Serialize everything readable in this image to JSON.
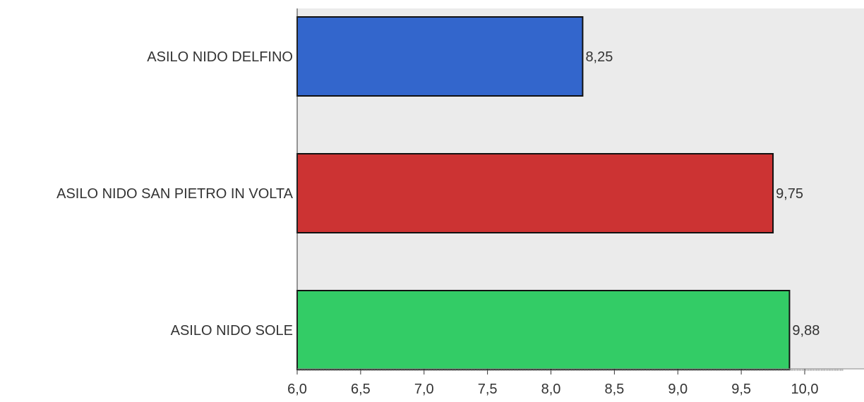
{
  "chart_data": {
    "type": "bar",
    "orientation": "horizontal",
    "categories": [
      "ASILO NIDO DELFINO",
      "ASILO NIDO SAN PIETRO IN VOLTA",
      "ASILO NIDO SOLE"
    ],
    "values": [
      8.25,
      9.75,
      9.88
    ],
    "value_labels": [
      "8,25",
      "9,75",
      "9,88"
    ],
    "colors": [
      "#3366cc",
      "#cc3333",
      "#33cc66"
    ],
    "xlim": [
      6.0,
      10.3
    ],
    "xticks": [
      6.0,
      6.5,
      7.0,
      7.5,
      8.0,
      8.5,
      9.0,
      9.5,
      10.0
    ],
    "xtick_labels": [
      "6,0",
      "6,5",
      "7,0",
      "7,5",
      "8,0",
      "8,5",
      "9,0",
      "9,5",
      "10,0"
    ],
    "plot_background": "#ebebeb",
    "grid": false,
    "legend": "none",
    "title": "",
    "xlabel": "",
    "ylabel": ""
  }
}
